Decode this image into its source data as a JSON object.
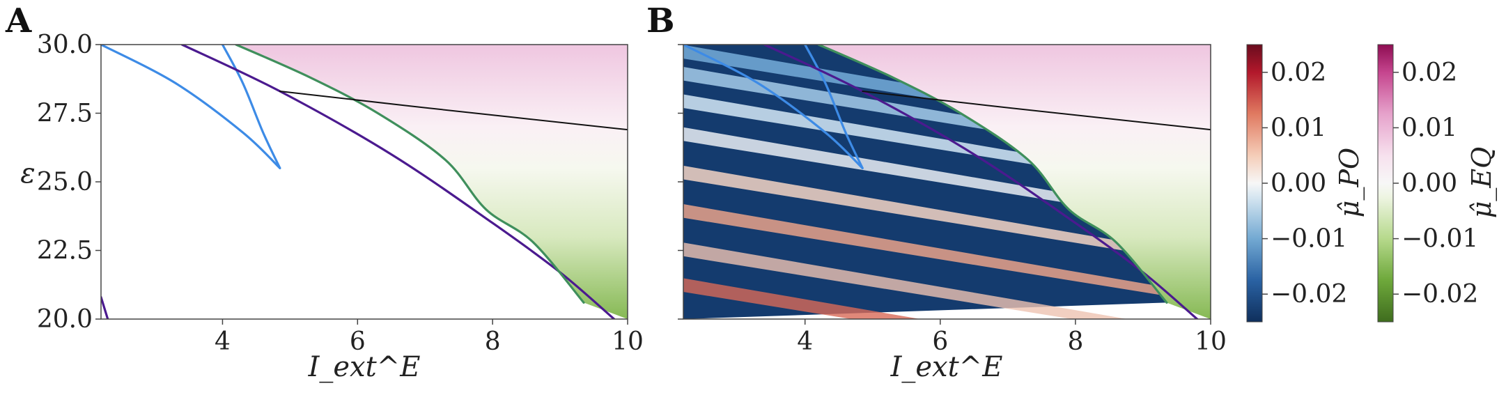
{
  "figure": {
    "panel_a_letter": "A",
    "panel_b_letter": "B",
    "colorbar_po_label": "μ̂_PO",
    "colorbar_eq_label": "μ̂_EQ",
    "colorbar_ticks": [
      "0.02",
      "0.01",
      "0.00",
      "−0.01",
      "−0.02"
    ],
    "colors": {
      "blue_curve": "#3d8be6",
      "purple_curve": "#4b1a8f",
      "green_curve": "#3f8f5c",
      "black_curve": "#111111",
      "eq_pink": "#e9b7d6",
      "eq_green": "#7fb34c",
      "po_dark_blue": "#123a6b",
      "po_dark_red": "#7a1020"
    }
  },
  "chart_data": [
    {
      "type": "heatmap",
      "panel": "A",
      "xlabel": "I_ext^E",
      "ylabel": "ε",
      "xlim": [
        2.2,
        10
      ],
      "ylim": [
        20,
        30
      ],
      "x_ticks": [
        "4",
        "6",
        "8",
        "10"
      ],
      "y_ticks": [
        "30.0",
        "27.5",
        "25.0",
        "22.5",
        "20.0"
      ],
      "x_tick_values": [
        4,
        6,
        8,
        10
      ],
      "y_tick_values": [
        30,
        27.5,
        25,
        22.5,
        20
      ],
      "curves": [
        {
          "color_key": "blue_curve",
          "points": [
            [
              2.2,
              30.0
            ],
            [
              3.3,
              28.6
            ],
            [
              4.3,
              26.8
            ],
            [
              4.85,
              25.5
            ]
          ]
        },
        {
          "color_key": "blue_curve",
          "points": [
            [
              4.0,
              30.0
            ],
            [
              4.3,
              28.6
            ],
            [
              4.6,
              26.8
            ],
            [
              4.85,
              25.5
            ]
          ]
        },
        {
          "color_key": "purple_curve",
          "points": [
            [
              3.4,
              30.0
            ],
            [
              4.85,
              28.3
            ],
            [
              6.5,
              26.0
            ],
            [
              8.0,
              23.5
            ],
            [
              9.0,
              21.7
            ],
            [
              9.8,
              20.0
            ]
          ]
        },
        {
          "color_key": "green_curve",
          "points": [
            [
              4.2,
              30.0
            ],
            [
              5.3,
              28.8
            ],
            [
              6.3,
              27.5
            ],
            [
              7.3,
              25.8
            ],
            [
              7.9,
              24.0
            ],
            [
              8.6,
              22.8
            ],
            [
              9.35,
              20.6
            ]
          ]
        },
        {
          "color_key": "black_curve",
          "points": [
            [
              4.85,
              28.3
            ],
            [
              7.0,
              27.7
            ],
            [
              10.0,
              26.9
            ]
          ]
        },
        {
          "color_key": "purple_curve",
          "points": [
            [
              2.2,
              20.8
            ],
            [
              2.3,
              20.0
            ]
          ]
        }
      ]
    },
    {
      "type": "heatmap",
      "panel": "B",
      "xlabel": "I_ext^E",
      "ylabel": "",
      "xlim": [
        2.2,
        10
      ],
      "ylim": [
        20,
        30
      ],
      "x_ticks": [
        "4",
        "6",
        "8",
        "10"
      ],
      "x_tick_values": [
        4,
        6,
        8,
        10
      ],
      "curves": [
        {
          "color_key": "blue_curve",
          "points": [
            [
              2.2,
              30.0
            ],
            [
              3.3,
              28.6
            ],
            [
              4.3,
              26.8
            ],
            [
              4.85,
              25.5
            ]
          ]
        },
        {
          "color_key": "blue_curve",
          "points": [
            [
              4.0,
              30.0
            ],
            [
              4.3,
              28.6
            ],
            [
              4.6,
              26.8
            ],
            [
              4.85,
              25.5
            ]
          ]
        },
        {
          "color_key": "purple_curve",
          "points": [
            [
              3.4,
              30.0
            ],
            [
              4.85,
              28.3
            ],
            [
              6.5,
              26.0
            ],
            [
              8.0,
              23.5
            ],
            [
              9.0,
              21.7
            ],
            [
              9.8,
              20.0
            ]
          ]
        },
        {
          "color_key": "green_curve",
          "points": [
            [
              4.2,
              30.0
            ],
            [
              5.3,
              28.8
            ],
            [
              6.3,
              27.5
            ],
            [
              7.3,
              25.8
            ],
            [
              7.9,
              24.0
            ],
            [
              8.6,
              22.8
            ],
            [
              9.35,
              20.6
            ]
          ]
        },
        {
          "color_key": "black_curve",
          "points": [
            [
              4.85,
              28.3
            ],
            [
              7.0,
              27.7
            ],
            [
              10.0,
              26.9
            ]
          ]
        }
      ]
    },
    {
      "type": "colorbar",
      "name": "μ̂_PO",
      "range": [
        -0.025,
        0.025
      ],
      "tick_values": [
        0.02,
        0.01,
        0.0,
        -0.01,
        -0.02
      ],
      "colormap": "RdBu_r"
    },
    {
      "type": "colorbar",
      "name": "μ̂_EQ",
      "range": [
        -0.025,
        0.025
      ],
      "tick_values": [
        0.02,
        0.01,
        0.0,
        -0.01,
        -0.02
      ],
      "colormap": "PiYG"
    }
  ]
}
